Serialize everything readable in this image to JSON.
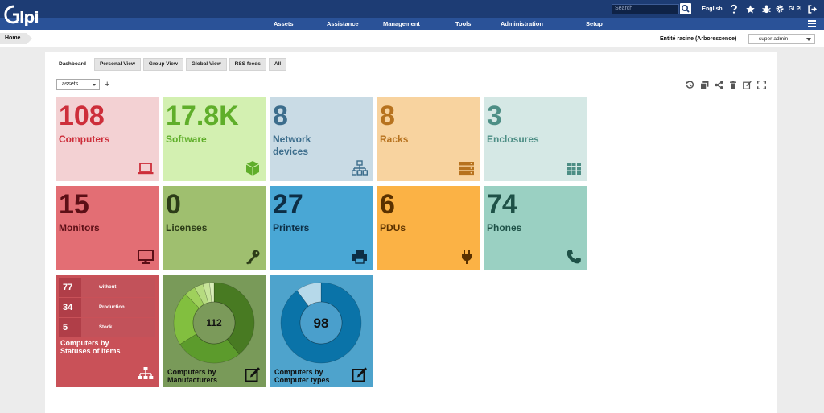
{
  "header": {
    "logo_text": "Glpi",
    "search_placeholder": "Search",
    "language": "English",
    "user": "GLPI"
  },
  "nav": {
    "items": [
      "Assets",
      "Assistance",
      "Management",
      "Tools",
      "Administration",
      "Setup"
    ]
  },
  "breadcrumb": {
    "home": "Home",
    "entity": "Entité racine (Arborescence)",
    "profile": "super-admin"
  },
  "tabs": [
    "Dashboard",
    "Personal View",
    "Group View",
    "Global View",
    "RSS feeds",
    "All"
  ],
  "dashboard": {
    "selected": "assets",
    "add_label": "+"
  },
  "cards": [
    {
      "value": "108",
      "label": "Computers",
      "bg": "#f3d1d3",
      "fg": "#cd2e3a",
      "icon": "laptop-icon"
    },
    {
      "value": "17.8K",
      "label": "Software",
      "bg": "#d3f0b1",
      "fg": "#5fae2a",
      "icon": "cube-icon"
    },
    {
      "value": "8",
      "label": "Network\ndevices",
      "bg": "#c9dbe5",
      "fg": "#3c6d8c",
      "icon": "network-icon"
    },
    {
      "value": "8",
      "label": "Racks",
      "bg": "#f8d39f",
      "fg": "#b7721e",
      "icon": "server-icon"
    },
    {
      "value": "3",
      "label": "Enclosures",
      "bg": "#d5e8e5",
      "fg": "#4d8e85",
      "icon": "grid-icon"
    },
    {
      "value": "15",
      "label": "Monitors",
      "bg": "#e36e74",
      "fg": "#5c0f16",
      "icon": "monitor-icon"
    },
    {
      "value": "0",
      "label": "Licenses",
      "bg": "#9fbf6f",
      "fg": "#2c3c18",
      "icon": "key-icon"
    },
    {
      "value": "27",
      "label": "Printers",
      "bg": "#49a7d5",
      "fg": "#0d2e45",
      "icon": "printer-icon"
    },
    {
      "value": "6",
      "label": "PDUs",
      "bg": "#fbb245",
      "fg": "#5a3100",
      "icon": "plug-icon"
    },
    {
      "value": "74",
      "label": "Phones",
      "bg": "#9ad0c2",
      "fg": "#1e5147",
      "icon": "phone-icon"
    }
  ],
  "status_widget": {
    "rows": [
      {
        "value": "77",
        "label": "without"
      },
      {
        "value": "34",
        "label": "Production"
      },
      {
        "value": "5",
        "label": "Stock"
      }
    ],
    "title": "Computers by\nStatuses of items",
    "bg": "#c95158"
  },
  "chart_data": [
    {
      "type": "pie",
      "title": "Computers by\nManufacturers",
      "total": "112",
      "values": [
        44,
        30,
        24,
        5,
        4,
        3,
        2
      ],
      "colors": [
        "#487a22",
        "#5c9b2c",
        "#82bf3f",
        "#9fd05c",
        "#b6db80",
        "#c7e49a",
        "#d9eeb8"
      ],
      "bg": "#799a59"
    },
    {
      "type": "pie",
      "title": "Computers by\nComputer types",
      "total": "98",
      "values": [
        88,
        10
      ],
      "colors": [
        "#0a73a8",
        "#b6d9ea"
      ],
      "bg": "#4ea3cc"
    }
  ]
}
